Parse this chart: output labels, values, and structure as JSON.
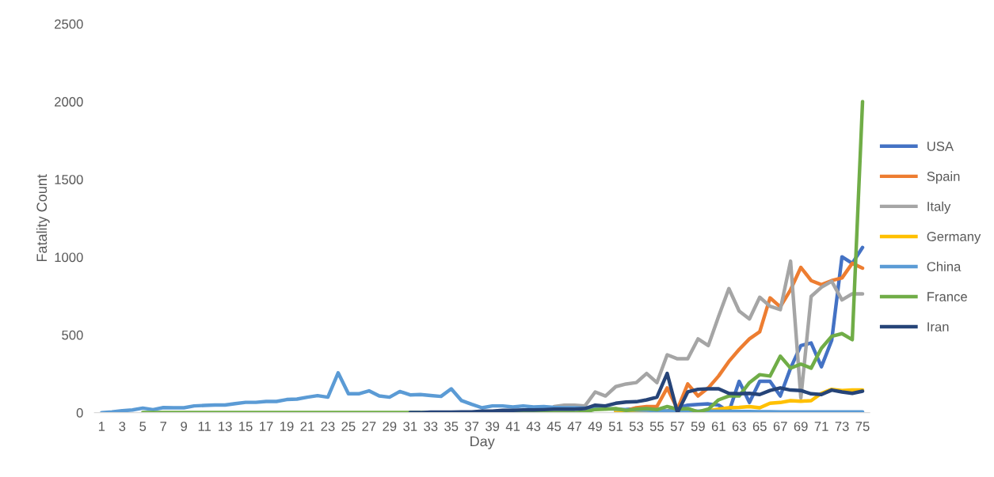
{
  "chart_data": {
    "type": "line",
    "xlabel": "Day",
    "ylabel": "Fatality Count",
    "categories": [
      "1",
      null,
      "3",
      null,
      "5",
      null,
      "7",
      null,
      "9",
      null,
      "11",
      null,
      "13",
      null,
      "15",
      null,
      "17",
      null,
      "19",
      null,
      "21",
      null,
      "23",
      null,
      "25",
      null,
      "27",
      null,
      "29",
      null,
      "31",
      null,
      "33",
      null,
      "35",
      null,
      "37",
      null,
      "39",
      null,
      "41",
      null,
      "43",
      null,
      "45",
      null,
      "47",
      null,
      "49",
      null,
      "51",
      null,
      "53",
      null,
      "55",
      null,
      "57",
      null,
      "59",
      null,
      "61",
      null,
      "63",
      null,
      "65",
      null,
      "67",
      null,
      "69",
      null,
      "71",
      null,
      "73",
      null,
      "75"
    ],
    "ylim": [
      0,
      2500
    ],
    "yticks": [
      0,
      500,
      1000,
      1500,
      2000,
      2500
    ],
    "grid": false,
    "legend": "right",
    "line_style": "solid",
    "marker": "none",
    "series": [
      {
        "name": "USA",
        "color": "#4472c4",
        "values": [
          null,
          null,
          null,
          null,
          null,
          null,
          null,
          null,
          null,
          null,
          null,
          null,
          null,
          null,
          null,
          null,
          null,
          null,
          null,
          null,
          null,
          null,
          null,
          null,
          null,
          null,
          null,
          null,
          null,
          null,
          null,
          null,
          null,
          null,
          null,
          null,
          null,
          null,
          null,
          null,
          null,
          null,
          null,
          null,
          null,
          null,
          null,
          null,
          null,
          null,
          17,
          20,
          25,
          22,
          15,
          10,
          30,
          48,
          53,
          56,
          48,
          5,
          201,
          65,
          201,
          201,
          107,
          286,
          431,
          448,
          295,
          465,
          1002,
          960,
          1062
        ]
      },
      {
        "name": "Spain",
        "color": "#ed7d31",
        "values": [
          null,
          null,
          null,
          null,
          null,
          null,
          null,
          null,
          null,
          null,
          null,
          null,
          null,
          null,
          null,
          null,
          null,
          null,
          null,
          null,
          null,
          null,
          null,
          null,
          null,
          null,
          null,
          null,
          null,
          null,
          null,
          null,
          null,
          null,
          null,
          null,
          null,
          null,
          null,
          null,
          null,
          null,
          null,
          null,
          null,
          null,
          null,
          null,
          null,
          null,
          11,
          14,
          31,
          39,
          39,
          159,
          22,
          184,
          107,
          159,
          235,
          329,
          406,
          474,
          520,
          738,
          680,
          790,
          934,
          849,
          823,
          849,
          866,
          960,
          929
        ]
      },
      {
        "name": "Italy",
        "color": "#a5a5a5",
        "values": [
          null,
          null,
          null,
          null,
          null,
          null,
          null,
          null,
          null,
          null,
          null,
          null,
          null,
          null,
          null,
          null,
          null,
          null,
          null,
          null,
          null,
          null,
          null,
          null,
          null,
          null,
          null,
          null,
          null,
          null,
          null,
          null,
          null,
          null,
          null,
          null,
          null,
          null,
          null,
          null,
          null,
          null,
          null,
          null,
          39,
          48,
          48,
          43,
          133,
          107,
          167,
          184,
          193,
          252,
          193,
          372,
          346,
          346,
          474,
          431,
          619,
          798,
          653,
          602,
          742,
          684,
          662,
          974,
          94,
          747,
          806,
          844,
          725,
          764,
          764
        ]
      },
      {
        "name": "Germany",
        "color": "#ffc000",
        "values": [
          null,
          null,
          null,
          null,
          null,
          null,
          null,
          null,
          null,
          null,
          null,
          null,
          null,
          null,
          null,
          null,
          null,
          null,
          null,
          null,
          null,
          null,
          null,
          null,
          null,
          null,
          null,
          null,
          null,
          null,
          null,
          null,
          null,
          null,
          null,
          null,
          null,
          null,
          null,
          null,
          null,
          null,
          null,
          null,
          null,
          null,
          null,
          null,
          null,
          null,
          5,
          6,
          7,
          9,
          10,
          8,
          12,
          8,
          3,
          12,
          22,
          31,
          34,
          39,
          31,
          60,
          65,
          77,
          73,
          77,
          124,
          150,
          142,
          145,
          145
        ]
      },
      {
        "name": "China",
        "color": "#5b9bd5",
        "values": [
          0,
          5,
          12,
          17,
          29,
          19,
          32,
          31,
          31,
          43,
          46,
          49,
          49,
          58,
          66,
          66,
          72,
          72,
          84,
          87,
          99,
          109,
          99,
          256,
          121,
          121,
          140,
          107,
          99,
          136,
          114,
          116,
          110,
          104,
          153,
          77,
          53,
          31,
          43,
          43,
          36,
          43,
          36,
          39,
          34,
          31,
          31,
          29,
          31,
          26,
          22,
          19,
          17,
          15,
          12,
          10,
          10,
          9,
          9,
          9,
          8,
          8,
          7,
          7,
          6,
          6,
          5,
          5,
          5,
          5,
          5,
          5,
          5,
          5,
          5
        ]
      },
      {
        "name": "France",
        "color": "#70ad47",
        "values": [
          null,
          null,
          null,
          null,
          0,
          0,
          0,
          0,
          0,
          0,
          0,
          0,
          0,
          0,
          0,
          0,
          0,
          0,
          0,
          0,
          0,
          0,
          0,
          0,
          0,
          0,
          0,
          0,
          0,
          0,
          0,
          0,
          0,
          0,
          0,
          0,
          0,
          0,
          0,
          0,
          0,
          0,
          0,
          0,
          0,
          0,
          0,
          5,
          20,
          22,
          26,
          14,
          22,
          26,
          19,
          39,
          22,
          26,
          5,
          22,
          82,
          107,
          107,
          193,
          244,
          235,
          363,
          286,
          312,
          286,
          414,
          491,
          508,
          469,
          2000
        ]
      },
      {
        "name": "Iran",
        "color": "#264478",
        "values": [
          null,
          null,
          null,
          null,
          null,
          null,
          null,
          null,
          null,
          null,
          null,
          null,
          null,
          null,
          null,
          null,
          null,
          null,
          null,
          null,
          null,
          null,
          null,
          null,
          null,
          null,
          null,
          null,
          null,
          null,
          0,
          0,
          3,
          3,
          3,
          5,
          5,
          10,
          10,
          14,
          14,
          17,
          17,
          19,
          22,
          22,
          22,
          26,
          48,
          43,
          60,
          68,
          70,
          82,
          99,
          252,
          0,
          133,
          150,
          153,
          153,
          124,
          121,
          124,
          116,
          142,
          159,
          145,
          142,
          121,
          116,
          145,
          133,
          124,
          138
        ]
      }
    ]
  }
}
